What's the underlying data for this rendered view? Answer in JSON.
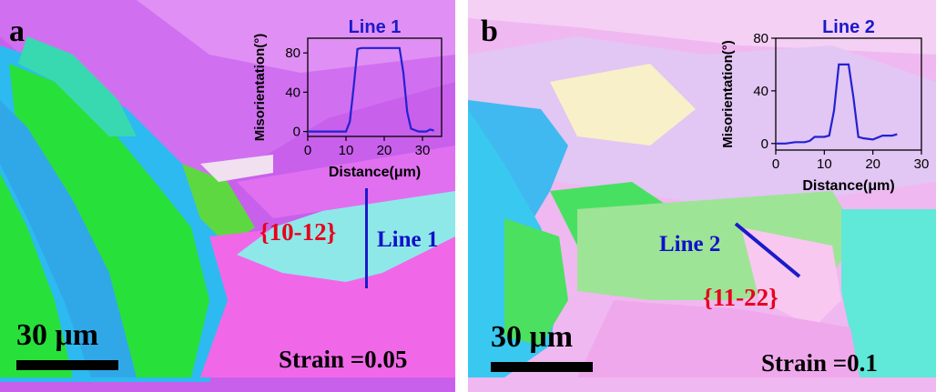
{
  "figure": {
    "panels": [
      {
        "label": "a",
        "twin_label": "{10-12}",
        "line_label": "Line 1",
        "scale_bar": "30 μm",
        "strain": "Strain =0.05",
        "inset": {
          "title": "Line 1",
          "xlabel": "Distance(μm)",
          "ylabel": "Misorientation(°)",
          "xticks": [
            "0",
            "10",
            "20",
            "30"
          ],
          "yticks": [
            "0",
            "40",
            "80"
          ],
          "xlim": [
            0,
            35
          ],
          "ylim": [
            -5,
            95
          ],
          "line_color": "#2222d0",
          "points": [
            [
              0,
              0
            ],
            [
              4,
              0
            ],
            [
              8,
              0
            ],
            [
              10,
              0
            ],
            [
              11,
              10
            ],
            [
              12,
              45
            ],
            [
              13,
              84
            ],
            [
              14,
              85
            ],
            [
              16,
              85
            ],
            [
              18,
              85
            ],
            [
              20,
              85
            ],
            [
              22,
              85
            ],
            [
              24,
              85
            ],
            [
              25,
              60
            ],
            [
              26,
              20
            ],
            [
              27,
              3
            ],
            [
              29,
              0
            ],
            [
              31,
              0
            ],
            [
              32,
              2
            ],
            [
              33,
              1
            ]
          ]
        }
      },
      {
        "label": "b",
        "twin_label": "{11-22}",
        "line_label": "Line 2",
        "scale_bar": "30 μm",
        "strain": "Strain =0.1",
        "inset": {
          "title": "Line 2",
          "xlabel": "Distance(μm)",
          "ylabel": "Misorientation(°)",
          "xticks": [
            "0",
            "10",
            "20",
            "30"
          ],
          "yticks": [
            "0",
            "40",
            "80"
          ],
          "xlim": [
            0,
            30
          ],
          "ylim": [
            -5,
            80
          ],
          "line_color": "#2222d0",
          "points": [
            [
              0,
              0
            ],
            [
              2,
              0
            ],
            [
              4,
              1
            ],
            [
              6,
              1
            ],
            [
              7,
              2
            ],
            [
              8,
              5
            ],
            [
              10,
              5
            ],
            [
              11,
              6
            ],
            [
              12,
              25
            ],
            [
              13,
              60
            ],
            [
              14,
              60
            ],
            [
              15,
              60
            ],
            [
              16,
              35
            ],
            [
              17,
              5
            ],
            [
              18,
              4
            ],
            [
              20,
              3
            ],
            [
              22,
              6
            ],
            [
              24,
              6
            ],
            [
              25,
              7
            ]
          ]
        }
      }
    ]
  },
  "colors": {
    "magenta": "#cc55f0",
    "pink": "#f060e8",
    "green": "#22e040",
    "blue": "#30a8e8",
    "cyan": "#60e8d8",
    "light_green": "#9ee090",
    "pale": "#f0c0f0",
    "trace_line": "#1a1ac8"
  }
}
